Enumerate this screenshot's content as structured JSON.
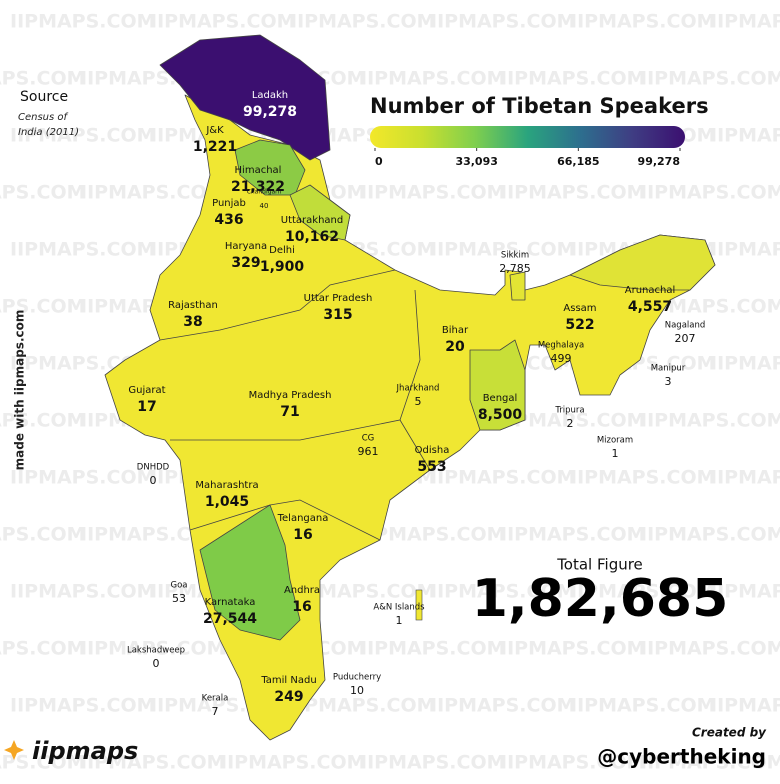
{
  "watermark": "IIPMAPS.COM",
  "source": {
    "title": "Source",
    "text": "Census of India (2011)"
  },
  "side_text": "made with iipmaps.com",
  "legend": {
    "title": "Number of Tibetan Speakers",
    "colors": [
      "#f3e82a",
      "#c9df2f",
      "#7fcf4e",
      "#2aa47e",
      "#2d6f8e",
      "#3f3d83",
      "#3b0f70"
    ],
    "lim": [
      0,
      99278
    ],
    "ticks": [
      0,
      {
        "value": 33093,
        "label": "33,093"
      },
      {
        "value": 66185,
        "label": "66,185"
      },
      {
        "value": 99278,
        "label": "99,278"
      }
    ]
  },
  "total": {
    "title": "Total Figure",
    "value": "1,82,685"
  },
  "credit": {
    "title": "Created by",
    "handle": "@cybertheking"
  },
  "logo": "iipmaps",
  "regions": [
    {
      "name": "Ladakh",
      "value": "99,278",
      "color": "#3b0f70"
    },
    {
      "name": "J&K",
      "value": "1,221",
      "color": "#f0e732"
    },
    {
      "name": "Himachal",
      "value": "21,322",
      "color": "#8ccb45"
    },
    {
      "name": "Chandigarh",
      "value": "40",
      "color": "#f0e732"
    },
    {
      "name": "Uttarakhand",
      "value": "10,162",
      "color": "#c1dd3a"
    },
    {
      "name": "Punjab",
      "value": "436",
      "color": "#f0e732"
    },
    {
      "name": "Haryana",
      "value": "329",
      "color": "#f0e732"
    },
    {
      "name": "Delhi",
      "value": "1,900",
      "color": "#f0e732"
    },
    {
      "name": "Rajasthan",
      "value": "38",
      "color": "#f0e732"
    },
    {
      "name": "Uttar Pradesh",
      "value": "315",
      "color": "#f0e732"
    },
    {
      "name": "Bihar",
      "value": "20",
      "color": "#f0e732"
    },
    {
      "name": "Sikkim",
      "value": "2,785",
      "color": "#e3e434"
    },
    {
      "name": "Arunachal",
      "value": "4,557",
      "color": "#e0e336"
    },
    {
      "name": "Assam",
      "value": "522",
      "color": "#f0e732"
    },
    {
      "name": "Nagaland",
      "value": "207",
      "color": "#f0e732"
    },
    {
      "name": "Meghalaya",
      "value": "499",
      "color": "#f0e732"
    },
    {
      "name": "Manipur",
      "value": "3",
      "color": "#f0e732"
    },
    {
      "name": "Gujarat",
      "value": "17",
      "color": "#f0e732"
    },
    {
      "name": "Madhya Pradesh",
      "value": "71",
      "color": "#f0e732"
    },
    {
      "name": "Jharkhand",
      "value": "5",
      "color": "#f0e732"
    },
    {
      "name": "Bengal",
      "value": "8,500",
      "color": "#c8df38"
    },
    {
      "name": "Tripura",
      "value": "2",
      "color": "#f0e732"
    },
    {
      "name": "Mizoram",
      "value": "1",
      "color": "#f0e732"
    },
    {
      "name": "DNHDD",
      "value": "0",
      "color": "#f0e732"
    },
    {
      "name": "CG",
      "value": "961",
      "color": "#f0e732"
    },
    {
      "name": "Odisha",
      "value": "553",
      "color": "#f0e732"
    },
    {
      "name": "Maharashtra",
      "value": "1,045",
      "color": "#f0e732"
    },
    {
      "name": "Telangana",
      "value": "16",
      "color": "#f0e732"
    },
    {
      "name": "Goa",
      "value": "53",
      "color": "#f0e732"
    },
    {
      "name": "Karnataka",
      "value": "27,544",
      "color": "#7fcb48"
    },
    {
      "name": "Andhra",
      "value": "16",
      "color": "#f0e732"
    },
    {
      "name": "A&N Islands",
      "value": "1",
      "color": "#f0e732"
    },
    {
      "name": "Lakshadweep",
      "value": "0",
      "color": "#f0e732"
    },
    {
      "name": "Tamil Nadu",
      "value": "249",
      "color": "#f0e732"
    },
    {
      "name": "Puducherry",
      "value": "10",
      "color": "#f0e732"
    },
    {
      "name": "Kerala",
      "value": "7",
      "color": "#f0e732"
    }
  ]
}
